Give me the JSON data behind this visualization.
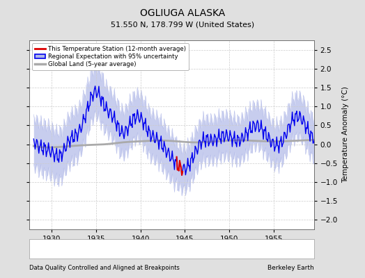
{
  "title": "OGLIUGA ALASKA",
  "subtitle": "51.550 N, 178.799 W (United States)",
  "xlabel_bottom": "Data Quality Controlled and Aligned at Breakpoints",
  "xlabel_right": "Berkeley Earth",
  "ylabel_right": "Temperature Anomaly (°C)",
  "xlim": [
    1927.5,
    1959.5
  ],
  "ylim": [
    -2.25,
    2.75
  ],
  "yticks": [
    -2,
    -1.5,
    -1,
    -0.5,
    0,
    0.5,
    1,
    1.5,
    2,
    2.5
  ],
  "xticks": [
    1930,
    1935,
    1940,
    1945,
    1950,
    1955
  ],
  "bg_color": "#e0e0e0",
  "plot_bg_color": "#ffffff",
  "uncertainty_color": "#b0b8e8",
  "regional_line_color": "#0000ee",
  "station_line_color": "#dd0000",
  "global_land_color": "#aaaaaa",
  "grid_color": "#cccccc"
}
